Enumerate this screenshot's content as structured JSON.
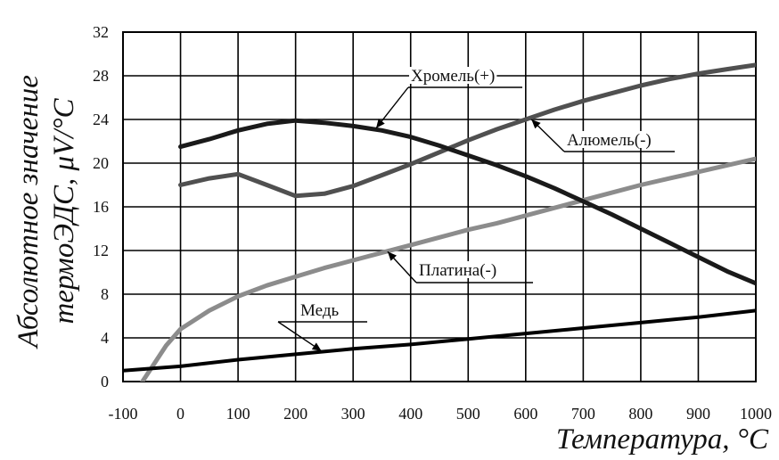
{
  "chart_data": {
    "type": "line",
    "xlabel": "Температура, °C",
    "ylabel_line1": "Абсолютное значение",
    "ylabel_line2": "термоЭДС, μV/°C",
    "xlim": [
      -100,
      1000
    ],
    "ylim": [
      0,
      32
    ],
    "x_ticks": [
      "-100",
      "0",
      "100",
      "200",
      "300",
      "400",
      "500",
      "600",
      "700",
      "800",
      "900",
      "1000"
    ],
    "y_ticks": [
      "0",
      "4",
      "8",
      "12",
      "16",
      "20",
      "24",
      "28",
      "32"
    ],
    "grid": true,
    "series": [
      {
        "name": "Хромель(+)",
        "color": "#1a1a1a",
        "x": [
          0,
          50,
          100,
          150,
          200,
          250,
          300,
          350,
          400,
          450,
          500,
          550,
          600,
          650,
          700,
          750,
          800,
          850,
          900,
          950,
          1000
        ],
        "y": [
          21.5,
          22.2,
          23.0,
          23.6,
          23.9,
          23.7,
          23.4,
          23.0,
          22.4,
          21.6,
          20.7,
          19.8,
          18.8,
          17.7,
          16.5,
          15.3,
          14.0,
          12.7,
          11.4,
          10.1,
          9.0
        ]
      },
      {
        "name": "Алюмель(-)",
        "color": "#505050",
        "x": [
          0,
          50,
          100,
          150,
          200,
          250,
          300,
          350,
          400,
          450,
          500,
          550,
          600,
          650,
          700,
          750,
          800,
          850,
          900,
          950,
          1000
        ],
        "y": [
          18.0,
          18.6,
          19.0,
          18.0,
          17.0,
          17.2,
          17.9,
          18.9,
          19.9,
          21.0,
          22.1,
          23.1,
          24.0,
          24.9,
          25.7,
          26.4,
          27.1,
          27.7,
          28.2,
          28.6,
          29.0
        ]
      },
      {
        "name": "Платина(-)",
        "color": "#8c8c8c",
        "x": [
          -70,
          -50,
          -25,
          0,
          50,
          100,
          150,
          200,
          250,
          300,
          350,
          400,
          450,
          500,
          550,
          600,
          650,
          700,
          750,
          800,
          850,
          900,
          950,
          1000
        ],
        "y": [
          -0.3,
          1.3,
          3.3,
          4.8,
          6.5,
          7.8,
          8.8,
          9.6,
          10.4,
          11.1,
          11.8,
          12.5,
          13.2,
          13.9,
          14.5,
          15.2,
          15.9,
          16.6,
          17.3,
          18.0,
          18.6,
          19.2,
          19.8,
          20.4
        ]
      },
      {
        "name": "Медь",
        "color": "#000000",
        "x": [
          -100,
          0,
          100,
          200,
          300,
          400,
          500,
          600,
          700,
          800,
          900,
          1000
        ],
        "y": [
          1.0,
          1.4,
          2.0,
          2.5,
          3.0,
          3.4,
          3.9,
          4.4,
          4.9,
          5.4,
          5.9,
          6.5
        ]
      }
    ]
  }
}
